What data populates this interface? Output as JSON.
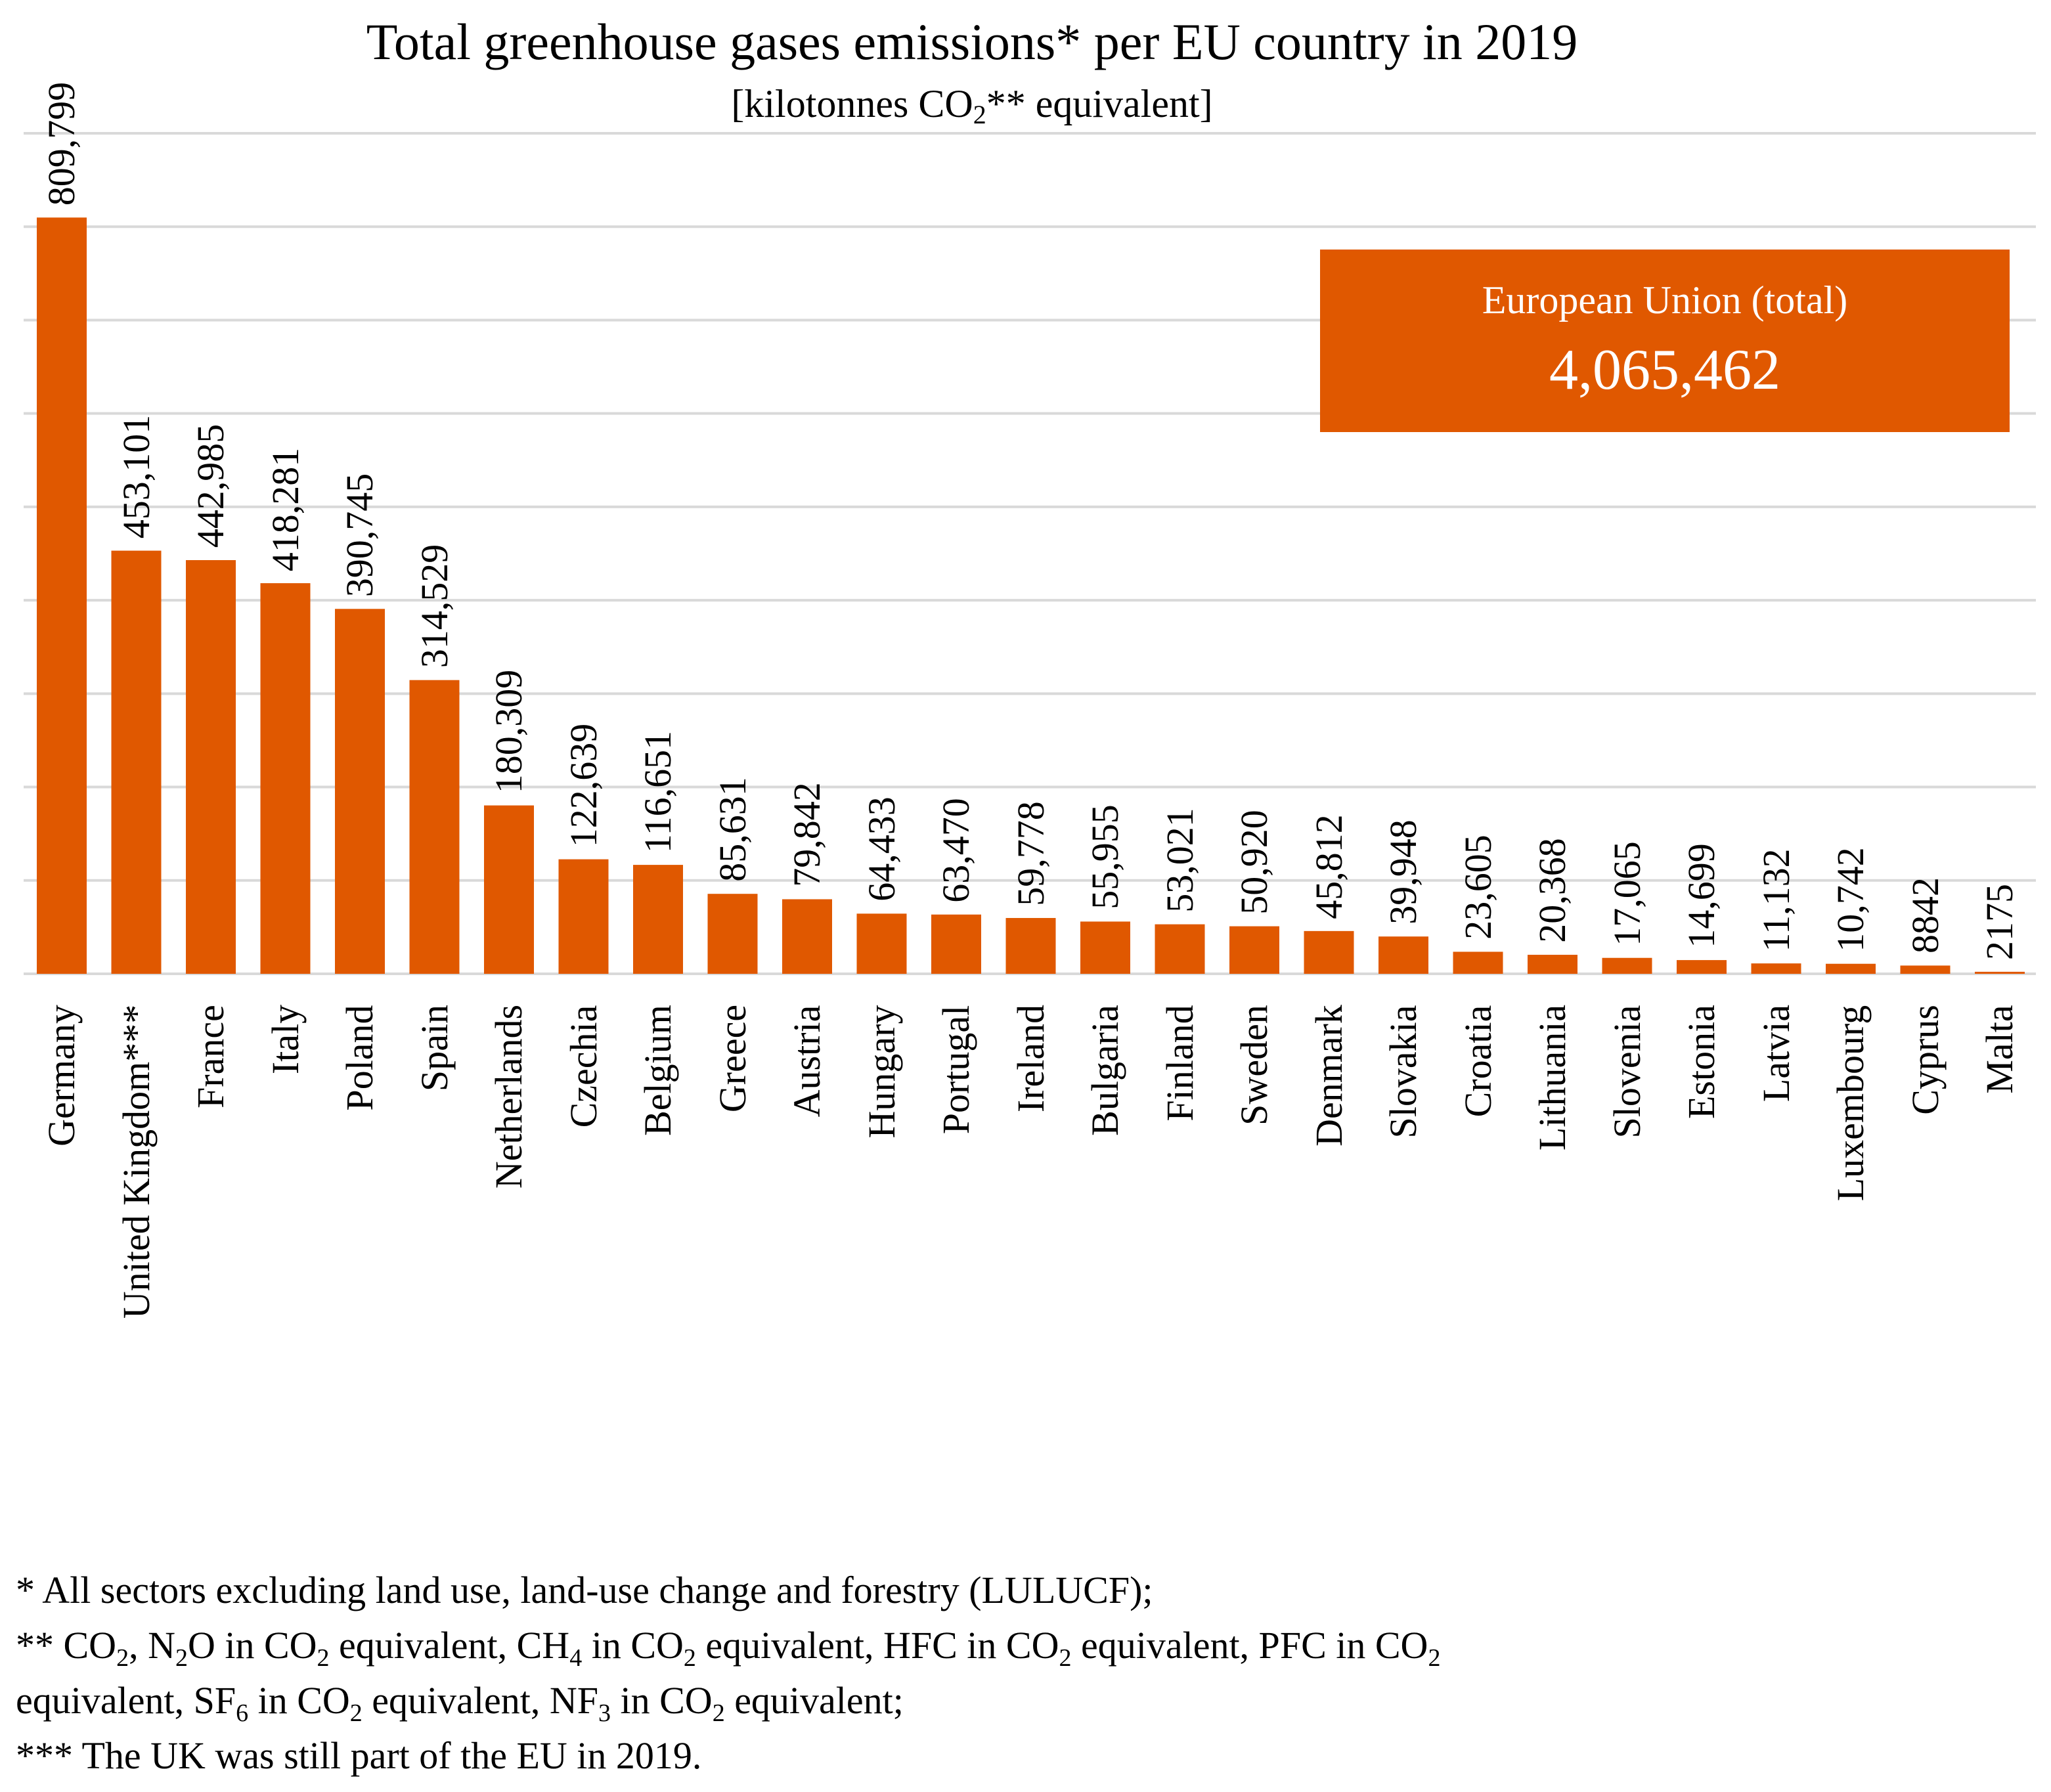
{
  "chart_data": {
    "type": "bar",
    "title": "Total greenhouse gases emissions* per EU country in 2019",
    "subtitle": {
      "prefix": "[kilotonnes CO",
      "sub": "2",
      "suffix": "** equivalent]"
    },
    "xlabel": "",
    "ylabel": "",
    "ylim": [
      0,
      900000
    ],
    "grid": true,
    "bar_color": "#e05800",
    "grid_color": "#d9d9d9",
    "categories": [
      "Germany",
      "United Kingdom***",
      "France",
      "Italy",
      "Poland",
      "Spain",
      "Netherlands",
      "Czechia",
      "Belgium",
      "Greece",
      "Austria",
      "Hungary",
      "Portugal",
      "Ireland",
      "Bulgaria",
      "Finland",
      "Sweden",
      "Denmark",
      "Slovakia",
      "Croatia",
      "Lithuania",
      "Slovenia",
      "Estonia",
      "Latvia",
      "Luxembourg",
      "Cyprus",
      "Malta"
    ],
    "values": [
      809799,
      453101,
      442985,
      418281,
      390745,
      314529,
      180309,
      122639,
      116651,
      85631,
      79842,
      64433,
      63470,
      59778,
      55955,
      53021,
      50920,
      45812,
      39948,
      23605,
      20368,
      17065,
      14699,
      11132,
      10742,
      8842,
      2175
    ],
    "value_labels": [
      "809,799",
      "453,101",
      "442,985",
      "418,281",
      "390,745",
      "314,529",
      "180,309",
      "122,639",
      "116,651",
      "85,631",
      "79,842",
      "64,433",
      "63,470",
      "59,778",
      "55,955",
      "53,021",
      "50,920",
      "45,812",
      "39,948",
      "23,605",
      "20,368",
      "17,065",
      "14,699",
      "11,132",
      "10,742",
      "8842",
      "2175"
    ],
    "annotation": {
      "label": "European Union (total)",
      "value": "4,065,462",
      "color": "#e05800"
    }
  },
  "footnotes": {
    "line1": "* All sectors excluding land use, land-use change and forestry (LULUCF);",
    "line2": [
      {
        "t": "** CO"
      },
      {
        "s": "2"
      },
      {
        "t": ", N"
      },
      {
        "s": "2"
      },
      {
        "t": "O in CO"
      },
      {
        "s": "2"
      },
      {
        "t": " equivalent, CH"
      },
      {
        "s": "4"
      },
      {
        "t": " in CO"
      },
      {
        "s": "2"
      },
      {
        "t": " equivalent, HFC in CO"
      },
      {
        "s": "2"
      },
      {
        "t": " equivalent, PFC in CO"
      },
      {
        "s": "2"
      }
    ],
    "line3": [
      {
        "t": "equivalent, SF"
      },
      {
        "s": "6"
      },
      {
        "t": " in CO"
      },
      {
        "s": "2"
      },
      {
        "t": " equivalent, NF"
      },
      {
        "s": "3"
      },
      {
        "t": " in CO"
      },
      {
        "s": "2"
      },
      {
        "t": " equivalent;"
      }
    ],
    "line4": "*** The UK was still part of the EU in 2019."
  }
}
